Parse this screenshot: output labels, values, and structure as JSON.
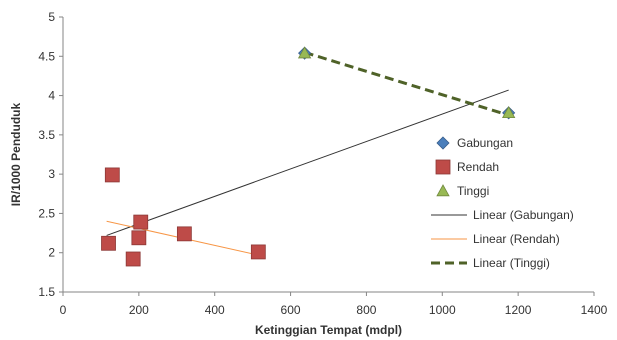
{
  "chart_data": {
    "type": "scatter",
    "title": "",
    "xlabel": "Ketinggian Tempat (mdpl)",
    "ylabel": "IR/1000 Penduduk",
    "xlim": [
      0,
      1400
    ],
    "ylim": [
      1.5,
      5
    ],
    "x_ticks": [
      0,
      200,
      400,
      600,
      800,
      1000,
      1200,
      1400
    ],
    "y_ticks": [
      1.5,
      2,
      2.5,
      3,
      3.5,
      4,
      4.5,
      5
    ],
    "x_tick_labels": [
      "0",
      "200",
      "400",
      "600",
      "800",
      "1000",
      "1200",
      "1400"
    ],
    "y_tick_labels": [
      "1.5",
      "2",
      "2.5",
      "3",
      "3.5",
      "4",
      "4.5",
      "5"
    ],
    "grid": false,
    "legend_position": "right",
    "series": [
      {
        "name": "Gabungan",
        "marker": "diamond",
        "color": "#4a7ebb",
        "points": [
          {
            "x": 120,
            "y": 2.12
          },
          {
            "x": 130,
            "y": 2.99
          },
          {
            "x": 185,
            "y": 1.92
          },
          {
            "x": 200,
            "y": 2.19
          },
          {
            "x": 205,
            "y": 2.39
          },
          {
            "x": 320,
            "y": 2.24
          },
          {
            "x": 515,
            "y": 2.01
          },
          {
            "x": 637,
            "y": 4.54
          },
          {
            "x": 1175,
            "y": 3.78
          }
        ]
      },
      {
        "name": "Rendah",
        "marker": "square",
        "color": "#be4b48",
        "points": [
          {
            "x": 120,
            "y": 2.12
          },
          {
            "x": 130,
            "y": 2.99
          },
          {
            "x": 185,
            "y": 1.92
          },
          {
            "x": 200,
            "y": 2.19
          },
          {
            "x": 205,
            "y": 2.39
          },
          {
            "x": 320,
            "y": 2.24
          },
          {
            "x": 515,
            "y": 2.01
          }
        ]
      },
      {
        "name": "Tinggi",
        "marker": "triangle",
        "color": "#98b954",
        "points": [
          {
            "x": 637,
            "y": 4.54
          },
          {
            "x": 1175,
            "y": 3.78
          }
        ]
      }
    ],
    "trendlines": [
      {
        "name": "Linear (Gabungan)",
        "color": "#333333",
        "style": "solid",
        "x": [
          115,
          1175
        ],
        "y": [
          2.22,
          4.07
        ]
      },
      {
        "name": "Linear (Rendah)",
        "color": "#f79646",
        "style": "solid",
        "x": [
          115,
          515
        ],
        "y": [
          2.4,
          1.97
        ]
      },
      {
        "name": "Linear (Tinggi)",
        "color": "#4f6228",
        "style": "dashed",
        "x": [
          637,
          1175
        ],
        "y": [
          4.55,
          3.75
        ]
      }
    ]
  }
}
